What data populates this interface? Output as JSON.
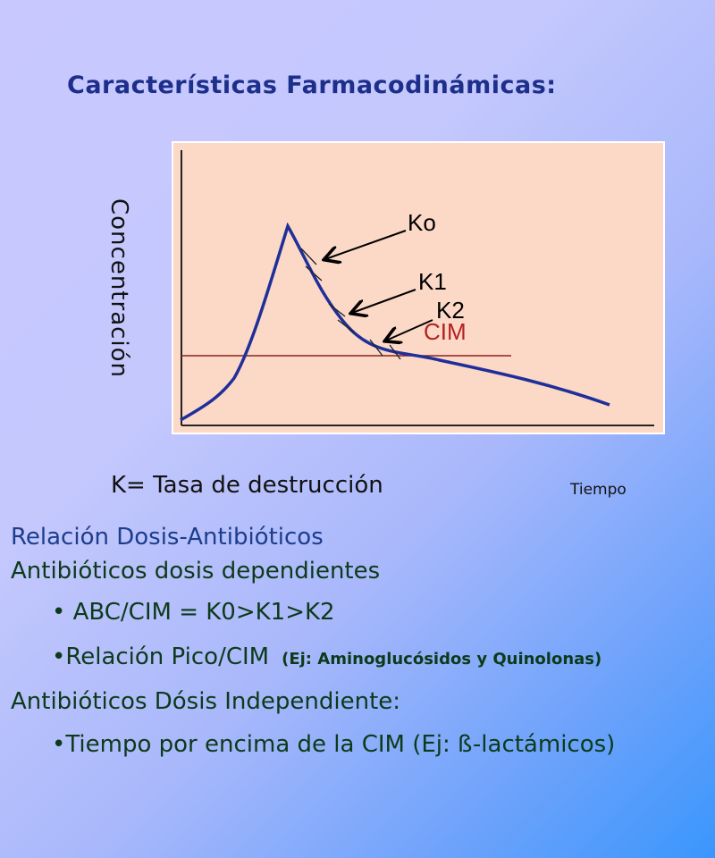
{
  "title": "Características Farmacodinámicas:",
  "chart": {
    "y_label": "Concentración",
    "x_label": "Tiempo",
    "labels": {
      "ko": "Ko",
      "k1": "K1",
      "k2": "K2",
      "cim": "CIM"
    },
    "colors": {
      "background": "#fcd9c6",
      "curve": "#1f2f9a",
      "cim_line": "#8a2222",
      "cim_text": "#b22222"
    }
  },
  "k_definition": "K= Tasa de destrucción",
  "section1": "Relación Dosis-Antibióticos",
  "section2": "Antibióticos dosis dependientes",
  "bullet1": "• ABC/CIM = K0>K1>K2",
  "bullet2": "•Relación Pico/CIM",
  "bullet2_note": "(Ej: Aminoglucósidos y Quinolonas)",
  "section3": "Antibióticos Dósis Independiente:",
  "bullet3": "•Tiempo por encima de la CIM (Ej: ß-lactámicos)"
}
